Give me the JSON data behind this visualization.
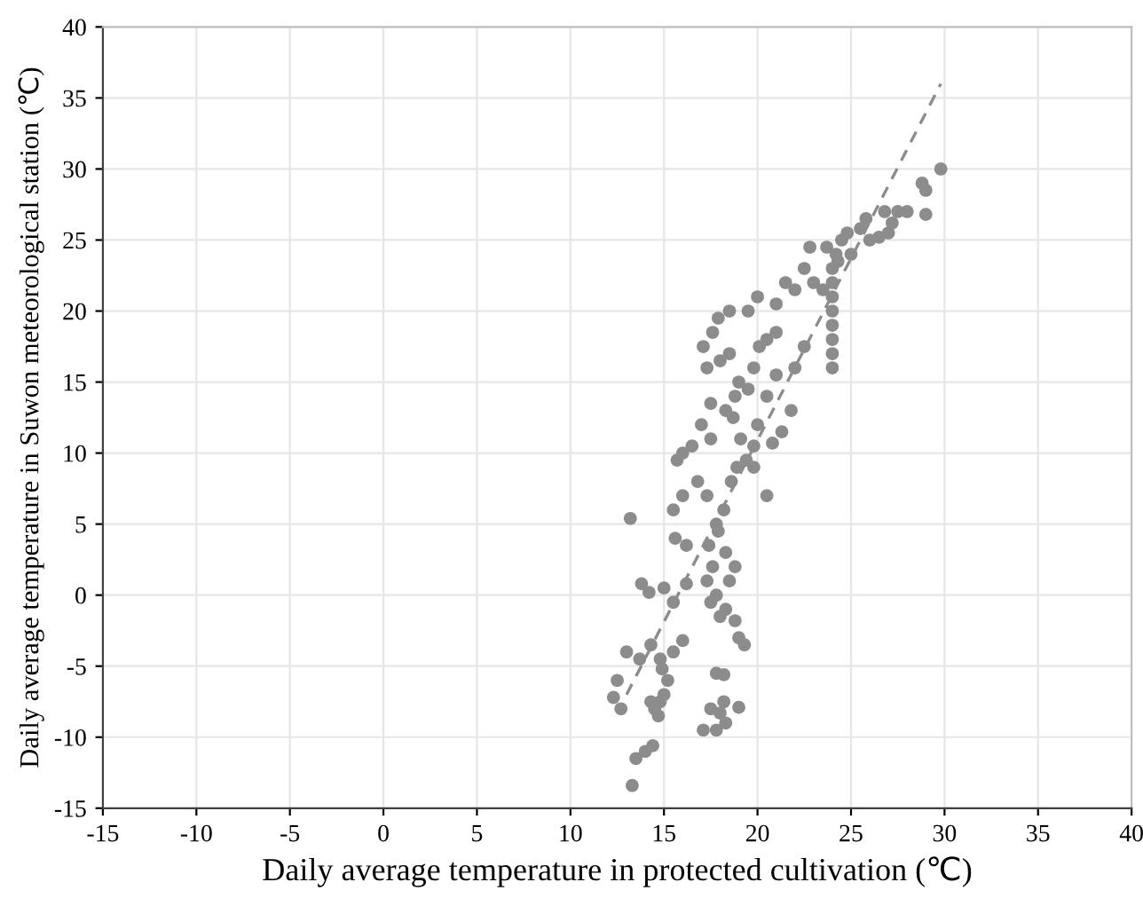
{
  "chart_data": {
    "type": "scatter",
    "xlabel": "Daily average temperature in protected cultivation (℃)",
    "ylabel": "Daily average temperature in Suwon meteorological station (℃)",
    "xlim": [
      -15,
      40
    ],
    "ylim": [
      -15,
      40
    ],
    "xticks": [
      -15,
      -10,
      -5,
      0,
      5,
      10,
      15,
      20,
      25,
      30,
      35,
      40
    ],
    "yticks": [
      -15,
      -10,
      -5,
      0,
      5,
      10,
      15,
      20,
      25,
      30,
      35,
      40
    ],
    "grid": true,
    "marker": "circle",
    "series": [
      {
        "color": "#8c8c8c",
        "x": [
          13.2,
          12.5,
          12.3,
          12.7,
          13,
          13.7,
          13.5,
          13.3,
          14,
          14.4,
          14.3,
          14.5,
          14.7,
          14.8,
          15,
          15.2,
          14.9,
          14.3,
          14.8,
          15.5,
          16,
          14.2,
          13.8,
          15,
          15.5,
          16.2,
          15.6,
          16.2,
          15.5,
          16,
          15.7,
          16,
          16.5,
          16.8,
          17.5,
          17.3,
          17.8,
          17.4,
          17.6,
          17.3,
          17.5,
          17.8,
          18,
          18.3,
          18.8,
          19,
          19.3,
          17.8,
          18.2,
          17.5,
          18,
          18.3,
          17.8,
          17.1,
          18.2,
          19,
          18.5,
          18.8,
          18.3,
          17.9,
          18.2,
          18.6,
          18.9,
          19.4,
          19.8,
          19.1,
          18.7,
          18.3,
          17.5,
          17,
          17.3,
          17.1,
          17.6,
          17.9,
          18.5,
          18,
          19,
          18.8,
          19.5,
          19.8,
          20.1,
          20.5,
          21,
          18.5,
          19.5,
          20,
          21,
          21.5,
          22,
          22.5,
          22.8,
          23,
          21,
          20.5,
          20,
          21.8,
          22,
          22.5,
          21.3,
          20.8,
          24,
          24,
          24,
          24,
          24,
          24,
          24,
          24,
          24.2,
          24.5,
          24.8,
          25,
          25.5,
          26,
          26.5,
          27,
          27.2,
          26.8,
          27.5,
          28,
          28.8,
          29,
          29.8,
          29,
          25.8,
          24.3,
          23.7,
          23.5,
          20.5,
          19.8
        ],
        "values": [
          5.4,
          -6,
          -7.2,
          -8,
          -4,
          -4.5,
          -11.5,
          -13.4,
          -11,
          -10.6,
          -7.5,
          -8,
          -8.5,
          -7.5,
          -7,
          -6,
          -5.2,
          -3.5,
          -4.5,
          -4,
          -3.2,
          0.2,
          0.8,
          0.5,
          -0.5,
          0.8,
          4,
          3.5,
          6,
          7,
          9.5,
          10,
          10.5,
          8,
          11,
          7,
          5,
          3.5,
          2,
          1,
          -0.5,
          0,
          -1.5,
          -1,
          -1.8,
          -3,
          -3.5,
          -5.5,
          -5.6,
          -8,
          -8.3,
          -9,
          -9.5,
          -9.5,
          -7.5,
          -7.9,
          1,
          2,
          3,
          4.5,
          6,
          8,
          9,
          9.5,
          10.5,
          11,
          12.5,
          13,
          13.5,
          12,
          16,
          17.5,
          18.5,
          19.5,
          17,
          16.5,
          15,
          14,
          14.5,
          16,
          17.5,
          18,
          18.5,
          20,
          20,
          21,
          20.5,
          22,
          21.5,
          23,
          24.5,
          22,
          15.5,
          14,
          12,
          13,
          16,
          17.5,
          11.5,
          10.7,
          16,
          17,
          18,
          19,
          20,
          21,
          22,
          23,
          24,
          25,
          25.5,
          24,
          25.8,
          25,
          25.2,
          25.5,
          26.2,
          27,
          27,
          27,
          29,
          28.5,
          30,
          26.8,
          26.5,
          23.5,
          24.5,
          21.5,
          7,
          9
        ]
      },
      {
        "type": "line",
        "color": "#8c8c8c",
        "line_style": "dashed",
        "marker": "none",
        "x": [
          13,
          29.8
        ],
        "values": [
          -7,
          36
        ]
      }
    ]
  }
}
